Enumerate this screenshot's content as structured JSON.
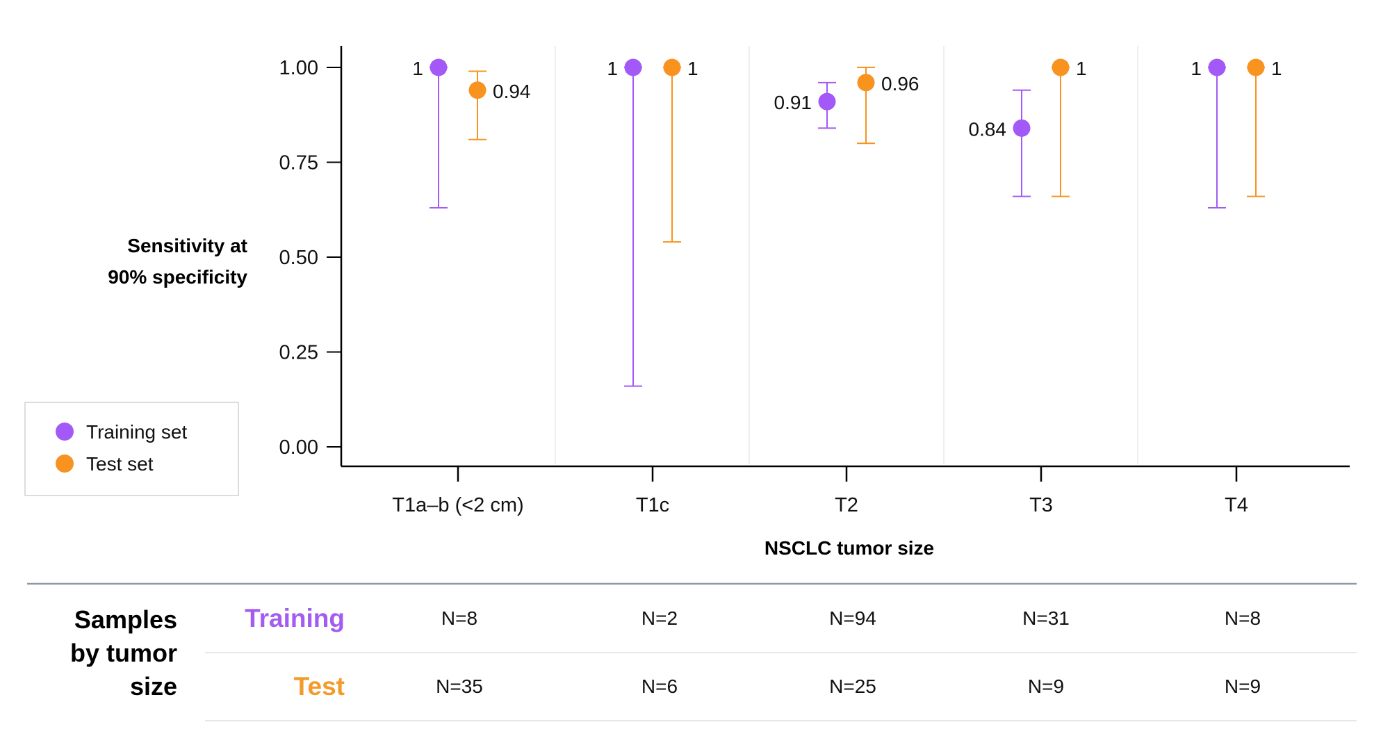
{
  "chart_data": {
    "type": "scatter",
    "subtype": "point-with-error-bars",
    "ylabel_lines": [
      "Sensitivity at",
      "90% specificity"
    ],
    "xlabel": "NSCLC tumor size",
    "categories": [
      "T1a–b (<2 cm)",
      "T1c",
      "T2",
      "T3",
      "T4"
    ],
    "ylim": [
      0,
      1
    ],
    "yticks": [
      "0.00",
      "0.25",
      "0.50",
      "0.75",
      "1.00"
    ],
    "ytick_values": [
      0,
      0.25,
      0.5,
      0.75,
      1.0
    ],
    "grid": "vertical separators between categories",
    "legend_placement": "left",
    "series": [
      {
        "name": "Training set",
        "color": "#a259f7",
        "values": [
          1,
          1,
          0.91,
          0.84,
          1
        ],
        "labels": [
          "1",
          "1",
          "0.91",
          "0.84",
          "1"
        ],
        "ci_low": [
          0.63,
          0.16,
          0.84,
          0.66,
          0.63
        ],
        "ci_high": [
          1,
          1,
          0.96,
          0.94,
          1
        ]
      },
      {
        "name": "Test set",
        "color": "#f7931e",
        "values": [
          0.94,
          1,
          0.96,
          1,
          1
        ],
        "labels": [
          "0.94",
          "1",
          "0.96",
          "1",
          "1"
        ],
        "ci_low": [
          0.81,
          0.54,
          0.8,
          0.66,
          0.66
        ],
        "ci_high": [
          0.99,
          1,
          1,
          1,
          1
        ]
      }
    ]
  },
  "table": {
    "title_lines": [
      "Samples",
      "by tumor",
      "size"
    ],
    "rows": [
      {
        "label": "Training",
        "color": "#a35cf2",
        "values": [
          "N=8",
          "N=2",
          "N=94",
          "N=31",
          "N=8"
        ]
      },
      {
        "label": "Test",
        "color": "#f39a2a",
        "values": [
          "N=35",
          "N=6",
          "N=25",
          "N=9",
          "N=9"
        ]
      }
    ]
  }
}
